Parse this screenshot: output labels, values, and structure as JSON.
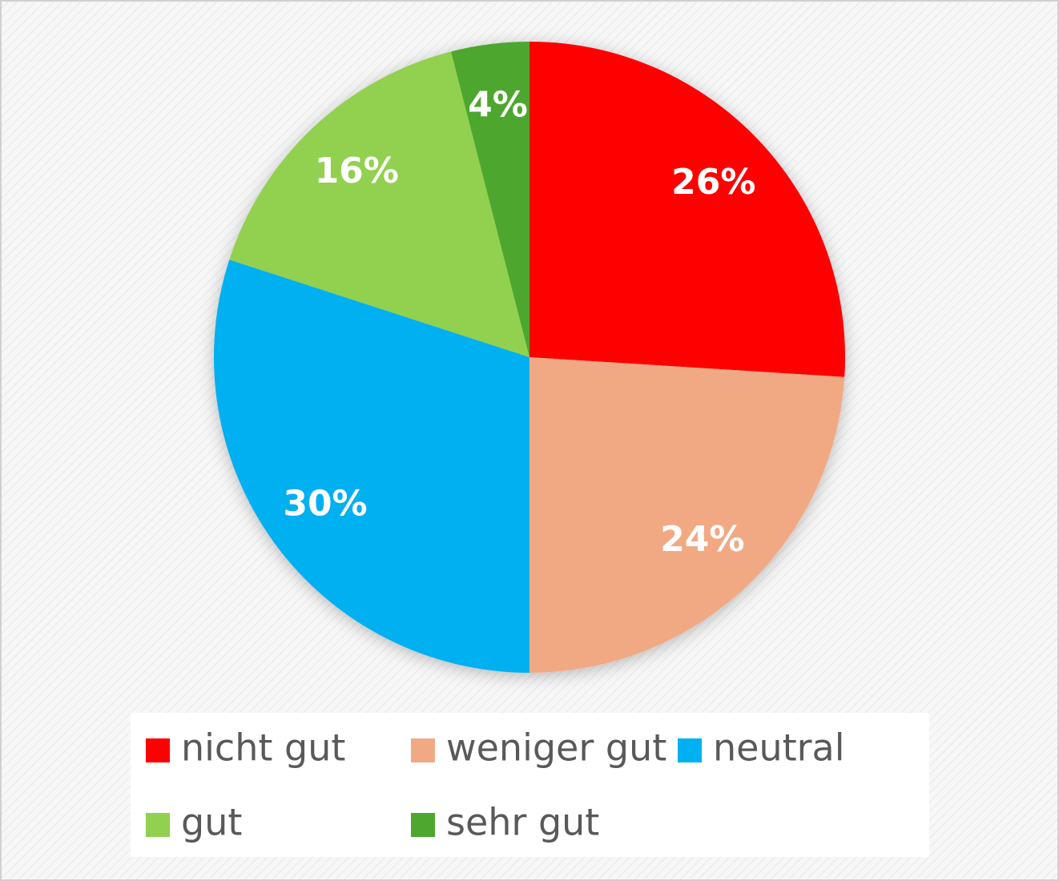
{
  "chart_data": {
    "type": "pie",
    "categories": [
      "nicht gut",
      "weniger gut",
      "neutral",
      "gut",
      "sehr gut"
    ],
    "values": [
      26,
      24,
      30,
      16,
      4
    ],
    "value_labels": [
      "26%",
      "24%",
      "30%",
      "16%",
      "4%"
    ],
    "colors": [
      "#ff0000",
      "#f1a984",
      "#00b0f0",
      "#92d050",
      "#4ea72e"
    ],
    "legend": "bottom"
  }
}
